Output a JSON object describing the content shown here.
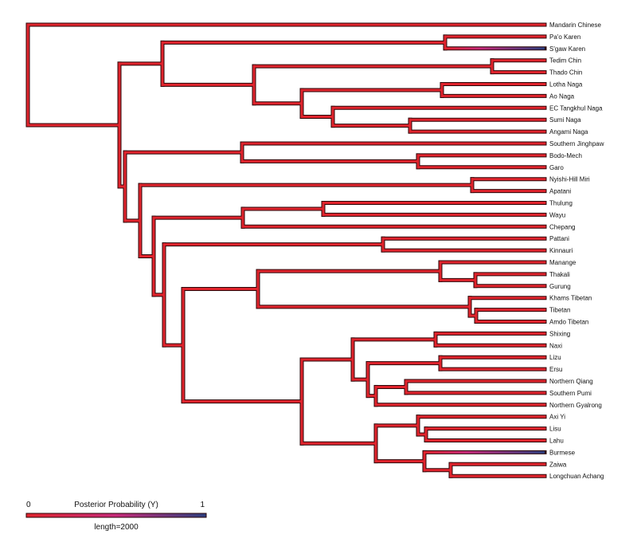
{
  "colors": {
    "low": "#e0242d",
    "mid": "#c72a7a",
    "high": "#2d3f7f",
    "outline": "#2a0608",
    "text": "#111111"
  },
  "tree": {
    "taxa": [
      "Mandarin Chinese",
      "Pa'o Karen",
      "S'gaw Karen",
      "Tedim Chin",
      "Thado Chin",
      "Lotha Naga",
      "Ao Naga",
      "EC Tangkhul Naga",
      "Sumi Naga",
      "Angami Naga",
      "Southern Jinghpaw",
      "Bodo-Mech",
      "Garo",
      "Nyishi-Hill Miri",
      "Apatani",
      "Thulung",
      "Wayu",
      "Chepang",
      "Pattani",
      "Kinnauri",
      "Manange",
      "Thakali",
      "Gurung",
      "Khams Tibetan",
      "Tibetan",
      "Amdo Tibetan",
      "Shixing",
      "Naxi",
      "Lizu",
      "Ersu",
      "Northern Qiang",
      "Southern Pumi",
      "Northern Gyalrong",
      "Axi Yi",
      "Lisu",
      "Lahu",
      "Burmese",
      "Zaiwa",
      "Longchuan Achang"
    ],
    "newick": "(Mandarin Chinese,(((Pa'o Karen,S'gaw Karen),((Tedim Chin,Thado Chin),((Lotha Naga,Ao Naga),(EC Tangkhul Naga,(Sumi Naga,Angami Naga))))),((Southern Jinghpaw,(Bodo-Mech,Garo)),((Nyishi-Hill Miri,Apatani),(((Thulung,Wayu),Chepang),((Pattani,Kinnauri),(((Manange,(Thakali,Gurung)),(Khams Tibetan,(Tibetan,Amdo Tibetan))),(((Shixing,Naxi),((Lizu,Ersu),((Northern Qiang,Southern Pumi),Northern Gyalrong))),(((Axi Yi,(Lisu,Lahu)),(Burmese,(Zaiwa,Longchuan Achang))))))))))))",
    "high_probability_branches": [
      "S'gaw Karen",
      "Burmese"
    ]
  },
  "legend": {
    "title": "Posterior Probability (Y)",
    "min_label": "0",
    "max_label": "1",
    "scale_label": "length=2000"
  }
}
